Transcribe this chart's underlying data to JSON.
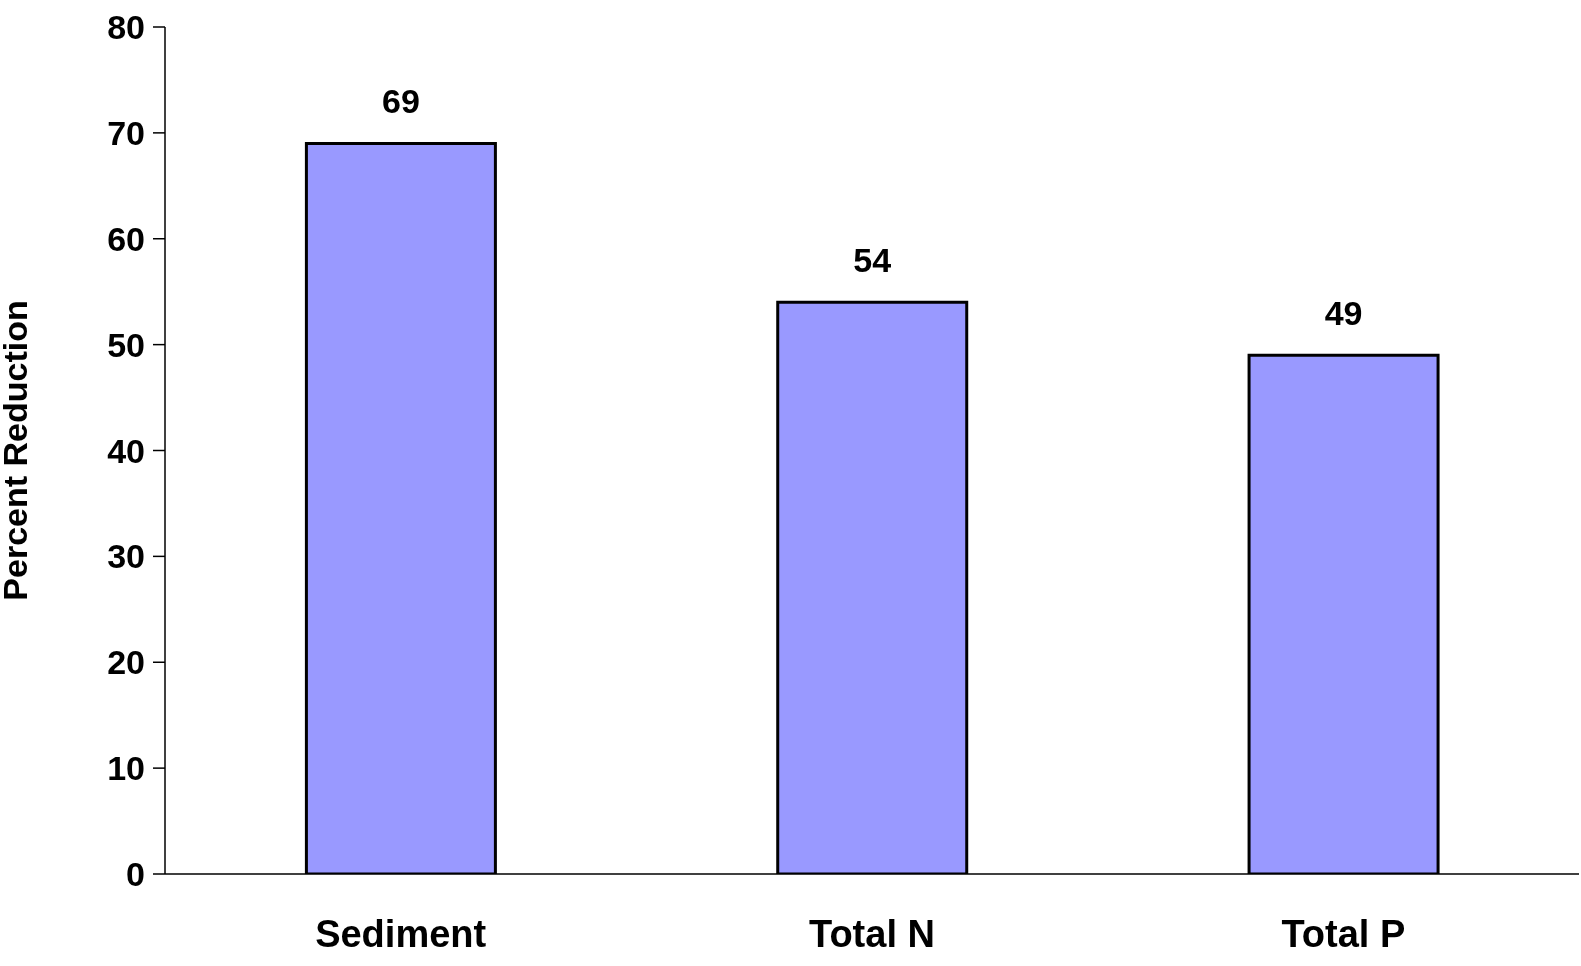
{
  "chart_data": {
    "type": "bar",
    "ylabel": "Percent Reduction",
    "categories": [
      "Sediment",
      "Total N",
      "Total P"
    ],
    "values": [
      69,
      54,
      49
    ],
    "color": "#9999ff",
    "ylim": [
      0,
      80
    ],
    "yticks": [
      0,
      10,
      20,
      30,
      40,
      50,
      60,
      70,
      80
    ],
    "grid": false,
    "data_labels": true
  }
}
